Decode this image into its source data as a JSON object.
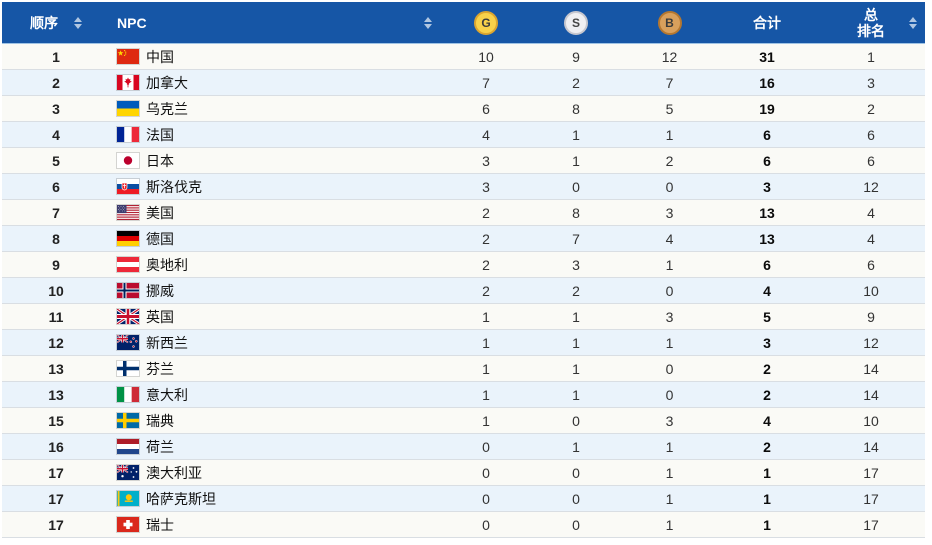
{
  "header": {
    "rank_label": "顺序",
    "npc_label": "NPC",
    "gold_label": "G",
    "silver_label": "S",
    "bronze_label": "B",
    "total_label": "合计",
    "overall_line1": "总",
    "overall_line2": "排名"
  },
  "colors": {
    "header_bg": "#1656A6",
    "row_bg": "#FAFAF6",
    "row_alt_bg": "#EAF3FB",
    "gold_badge": "#F8D14A",
    "silver_badge": "#EFEFF2",
    "bronze_badge": "#D9A05C"
  },
  "rows": [
    {
      "rank": "1",
      "flag": "cn",
      "country": "中国",
      "gold": "10",
      "silver": "9",
      "bronze": "12",
      "total": "31",
      "overall": "1"
    },
    {
      "rank": "2",
      "flag": "ca",
      "country": "加拿大",
      "gold": "7",
      "silver": "2",
      "bronze": "7",
      "total": "16",
      "overall": "3"
    },
    {
      "rank": "3",
      "flag": "ua",
      "country": "乌克兰",
      "gold": "6",
      "silver": "8",
      "bronze": "5",
      "total": "19",
      "overall": "2"
    },
    {
      "rank": "4",
      "flag": "fr",
      "country": "法国",
      "gold": "4",
      "silver": "1",
      "bronze": "1",
      "total": "6",
      "overall": "6"
    },
    {
      "rank": "5",
      "flag": "jp",
      "country": "日本",
      "gold": "3",
      "silver": "1",
      "bronze": "2",
      "total": "6",
      "overall": "6"
    },
    {
      "rank": "6",
      "flag": "sk",
      "country": "斯洛伐克",
      "gold": "3",
      "silver": "0",
      "bronze": "0",
      "total": "3",
      "overall": "12"
    },
    {
      "rank": "7",
      "flag": "us",
      "country": "美国",
      "gold": "2",
      "silver": "8",
      "bronze": "3",
      "total": "13",
      "overall": "4"
    },
    {
      "rank": "8",
      "flag": "de",
      "country": "德国",
      "gold": "2",
      "silver": "7",
      "bronze": "4",
      "total": "13",
      "overall": "4"
    },
    {
      "rank": "9",
      "flag": "at",
      "country": "奥地利",
      "gold": "2",
      "silver": "3",
      "bronze": "1",
      "total": "6",
      "overall": "6"
    },
    {
      "rank": "10",
      "flag": "no",
      "country": "挪威",
      "gold": "2",
      "silver": "2",
      "bronze": "0",
      "total": "4",
      "overall": "10"
    },
    {
      "rank": "11",
      "flag": "gb",
      "country": "英国",
      "gold": "1",
      "silver": "1",
      "bronze": "3",
      "total": "5",
      "overall": "9"
    },
    {
      "rank": "12",
      "flag": "nz",
      "country": "新西兰",
      "gold": "1",
      "silver": "1",
      "bronze": "1",
      "total": "3",
      "overall": "12"
    },
    {
      "rank": "13",
      "flag": "fi",
      "country": "芬兰",
      "gold": "1",
      "silver": "1",
      "bronze": "0",
      "total": "2",
      "overall": "14"
    },
    {
      "rank": "13",
      "flag": "it",
      "country": "意大利",
      "gold": "1",
      "silver": "1",
      "bronze": "0",
      "total": "2",
      "overall": "14"
    },
    {
      "rank": "15",
      "flag": "se",
      "country": "瑞典",
      "gold": "1",
      "silver": "0",
      "bronze": "3",
      "total": "4",
      "overall": "10"
    },
    {
      "rank": "16",
      "flag": "nl",
      "country": "荷兰",
      "gold": "0",
      "silver": "1",
      "bronze": "1",
      "total": "2",
      "overall": "14"
    },
    {
      "rank": "17",
      "flag": "au",
      "country": "澳大利亚",
      "gold": "0",
      "silver": "0",
      "bronze": "1",
      "total": "1",
      "overall": "17"
    },
    {
      "rank": "17",
      "flag": "kz",
      "country": "哈萨克斯坦",
      "gold": "0",
      "silver": "0",
      "bronze": "1",
      "total": "1",
      "overall": "17"
    },
    {
      "rank": "17",
      "flag": "ch",
      "country": "瑞士",
      "gold": "0",
      "silver": "0",
      "bronze": "1",
      "total": "1",
      "overall": "17"
    }
  ]
}
